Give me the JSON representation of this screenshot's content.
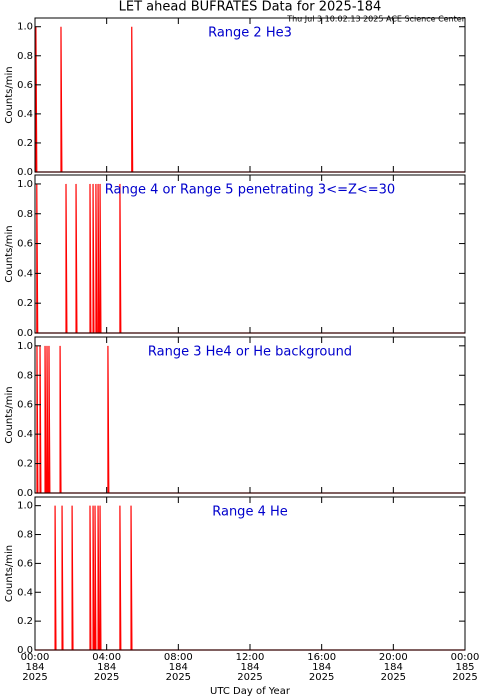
{
  "title": "LET ahead BUFRATES Data for 2025-184",
  "timestamp": "Thu Jul  3 10:02:13 2025 ACE Science Center",
  "xlabel": "UTC Day of Year",
  "xlim": [
    0,
    24
  ],
  "xticks": [
    {
      "value": 0,
      "label": "00:00\n184\n2025"
    },
    {
      "value": 4,
      "label": "04:00\n184\n2025"
    },
    {
      "value": 8,
      "label": "08:00\n184\n2025"
    },
    {
      "value": 12,
      "label": "12:00\n184\n2025"
    },
    {
      "value": 16,
      "label": "16:00\n184\n2025"
    },
    {
      "value": 20,
      "label": "20:00\n184\n2025"
    },
    {
      "value": 24,
      "label": "00:00\n185\n2025"
    }
  ],
  "chart_data": [
    {
      "type": "line",
      "title": "Range 2 He3",
      "ylabel": "Counts/min",
      "color": "#ff0000",
      "ylim": [
        0,
        1.06
      ],
      "yticks": [
        {
          "value": 0,
          "label": "0.0"
        },
        {
          "value": 0.2,
          "label": "0.2"
        },
        {
          "value": 0.4,
          "label": "0.4"
        },
        {
          "value": 0.6,
          "label": "0.6"
        },
        {
          "value": 0.8,
          "label": "0.8"
        },
        {
          "value": 1,
          "label": "1.0"
        }
      ],
      "x": [
        0,
        0.05,
        0.05,
        0.1,
        1.45,
        1.45,
        1.5,
        5.4,
        5.4,
        5.45,
        24
      ],
      "values": [
        0,
        0,
        1,
        0,
        0,
        1,
        0,
        0,
        1,
        0,
        0
      ]
    },
    {
      "type": "line",
      "title": "Range 4 or Range 5 penetrating 3<=Z<=30",
      "ylabel": "Counts/min",
      "color": "#ff0000",
      "ylim": [
        0,
        1.06
      ],
      "yticks": [
        {
          "value": 0,
          "label": "0.0"
        },
        {
          "value": 0.2,
          "label": "0.2"
        },
        {
          "value": 0.4,
          "label": "0.4"
        },
        {
          "value": 0.6,
          "label": "0.6"
        },
        {
          "value": 0.8,
          "label": "0.8"
        },
        {
          "value": 1,
          "label": "1.0"
        }
      ],
      "x": [
        0,
        0.1,
        0.1,
        0.15,
        1.73,
        1.73,
        1.78,
        2.29,
        2.29,
        2.34,
        3.07,
        3.07,
        3.12,
        3.24,
        3.24,
        3.29,
        3.4,
        3.4,
        3.45,
        3.52,
        3.52,
        3.57,
        3.63,
        3.63,
        3.68,
        4.74,
        4.74,
        4.79,
        24
      ],
      "values": [
        0,
        0,
        1,
        0,
        0,
        1,
        0,
        0,
        1,
        0,
        0,
        1,
        0,
        0,
        1,
        0,
        0,
        1,
        0,
        0,
        1,
        0,
        0,
        1,
        0,
        0,
        1,
        0,
        0
      ]
    },
    {
      "type": "line",
      "title": "Range 3 He4 or He background",
      "ylabel": "Counts/min",
      "color": "#ff0000",
      "ylim": [
        0,
        1.06
      ],
      "yticks": [
        {
          "value": 0,
          "label": "0.0"
        },
        {
          "value": 0.2,
          "label": "0.2"
        },
        {
          "value": 0.4,
          "label": "0.4"
        },
        {
          "value": 0.6,
          "label": "0.6"
        },
        {
          "value": 0.8,
          "label": "0.8"
        },
        {
          "value": 1,
          "label": "1.0"
        }
      ],
      "x": [
        0,
        0.11,
        0.11,
        0.16,
        0.28,
        0.28,
        0.33,
        0.56,
        0.56,
        0.61,
        0.67,
        0.67,
        0.72,
        0.78,
        0.78,
        0.83,
        1.4,
        1.4,
        1.45,
        4.07,
        4.07,
        4.12,
        24
      ],
      "values": [
        0,
        0,
        1,
        0,
        0,
        1,
        0,
        0,
        1,
        0,
        0,
        1,
        0,
        0,
        1,
        0,
        0,
        1,
        0,
        0,
        1,
        0,
        0
      ]
    },
    {
      "type": "line",
      "title": "Range 4 He",
      "ylabel": "Counts/min",
      "color": "#ff0000",
      "ylim": [
        0,
        1.06
      ],
      "yticks": [
        {
          "value": 0,
          "label": "0.0"
        },
        {
          "value": 0.2,
          "label": "0.2"
        },
        {
          "value": 0.4,
          "label": "0.4"
        },
        {
          "value": 0.6,
          "label": "0.6"
        },
        {
          "value": 0.8,
          "label": "0.8"
        },
        {
          "value": 1,
          "label": "1.0"
        }
      ],
      "x": [
        0,
        1.12,
        1.12,
        1.17,
        1.51,
        1.51,
        1.56,
        2.07,
        2.07,
        2.12,
        3.07,
        3.07,
        3.12,
        3.24,
        3.24,
        3.29,
        3.35,
        3.35,
        3.4,
        3.52,
        3.52,
        3.57,
        3.63,
        3.63,
        3.68,
        4.74,
        4.74,
        4.79,
        5.36,
        5.36,
        5.41,
        24
      ],
      "values": [
        0,
        0,
        1,
        0,
        0,
        1,
        0,
        0,
        1,
        0,
        0,
        1,
        0,
        0,
        1,
        0,
        0,
        1,
        0,
        0,
        1,
        0,
        0,
        1,
        0,
        0,
        1,
        0,
        0,
        1,
        0,
        0
      ]
    }
  ]
}
